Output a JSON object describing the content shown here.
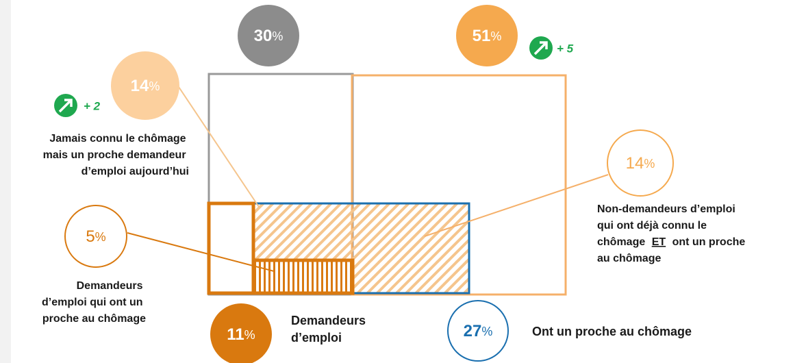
{
  "circles": {
    "total_non_job_seekers": {
      "value": 30,
      "unit": "%"
    },
    "close_to_unemployment": {
      "value": 51,
      "unit": "%"
    },
    "never_unemployed_close": {
      "value": 14,
      "unit": "%"
    },
    "non_job_seekers_both": {
      "value": 14,
      "unit": "%"
    },
    "job_seekers_close": {
      "value": 5,
      "unit": "%"
    },
    "job_seekers": {
      "value": 11,
      "unit": "%"
    },
    "close_to_unemployed": {
      "value": 27,
      "unit": "%"
    }
  },
  "trends": {
    "close_to_unemployment": "+ 5",
    "never_unemployed_close": "+ 2"
  },
  "labels": {
    "never_unemployed_close": [
      "Jamais connu le chômage",
      "mais un proche demandeur",
      "d’emploi aujourd’hui"
    ],
    "non_job_seekers_both": {
      "lines": [
        "Non-demandeurs d’emploi",
        "qui ont déjà connu le"
      ],
      "emphasis_line": {
        "before": "chômage",
        "underlined": "ET",
        "after": "ont un proche"
      },
      "last_line": "au chômage"
    },
    "job_seekers_close": [
      "Demandeurs",
      "d’emploi qui ont un",
      "proche au chômage"
    ],
    "job_seekers": [
      "Demandeurs",
      "d’emploi"
    ],
    "close_to_unemployed": "Ont un proche au chômage"
  }
}
